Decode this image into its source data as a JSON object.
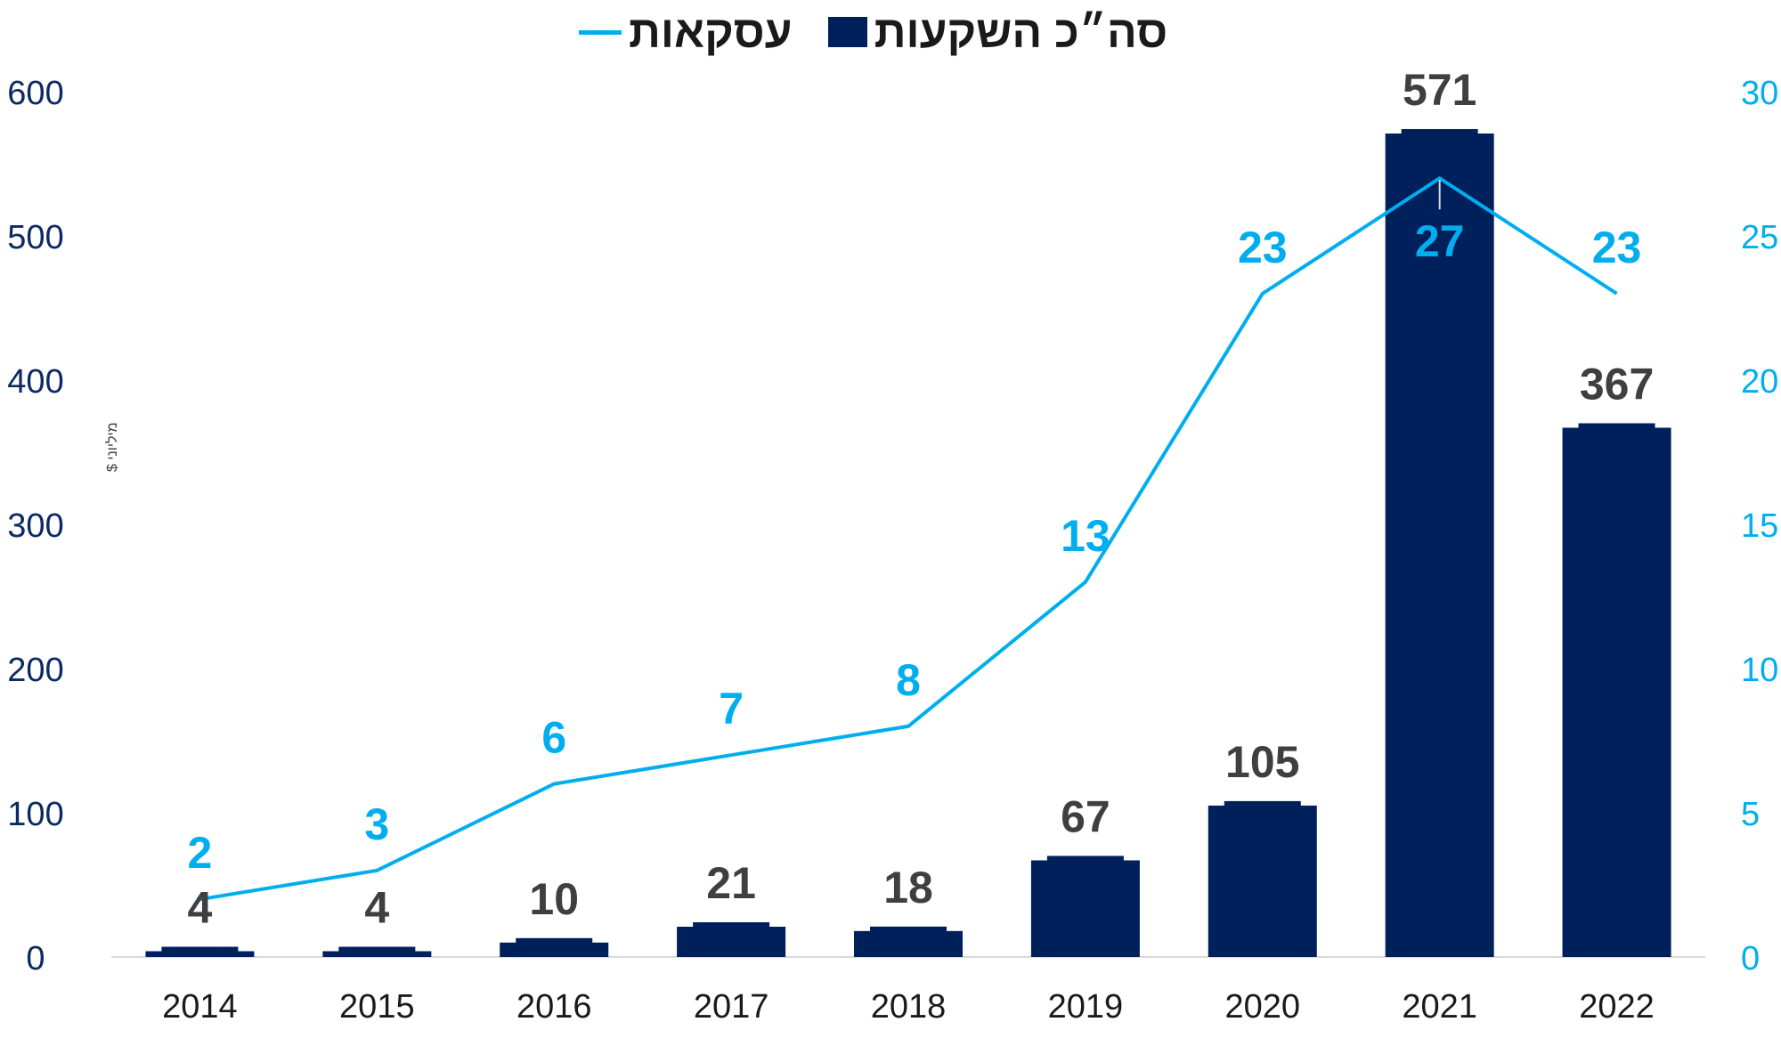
{
  "chart_data": {
    "type": "bar",
    "categories": [
      "2014",
      "2015",
      "2016",
      "2017",
      "2018",
      "2019",
      "2020",
      "2021",
      "2022"
    ],
    "series": [
      {
        "name": "סה״כ השקעות",
        "type": "bar",
        "axis": "left",
        "color": "#00205b",
        "values": [
          4,
          4,
          10,
          21,
          18,
          67,
          105,
          571,
          367
        ]
      },
      {
        "name": "עסקאות",
        "type": "line",
        "axis": "right",
        "color": "#00aeef",
        "values": [
          2,
          3,
          6,
          7,
          8,
          13,
          23,
          27,
          23
        ]
      }
    ],
    "ylabel": "מיליוני $",
    "ylim": [
      0,
      600
    ],
    "y2lim": [
      0,
      30
    ],
    "yticks": [
      "0",
      "100",
      "200",
      "300",
      "400",
      "500",
      "600"
    ],
    "y2ticks": [
      "0",
      "5",
      "10",
      "15",
      "20",
      "25",
      "30"
    ],
    "legend_position": "top-center",
    "grid": false
  }
}
